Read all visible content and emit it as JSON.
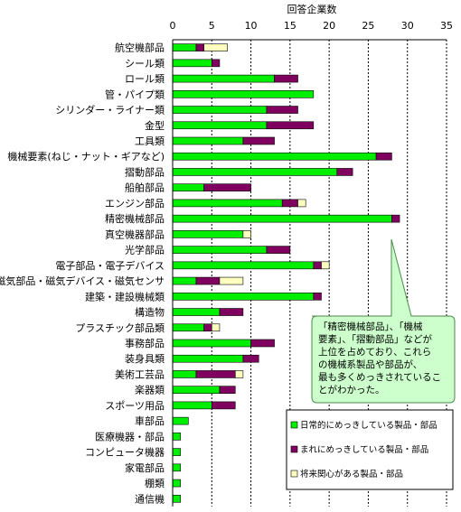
{
  "chart_data": {
    "type": "bar",
    "orientation": "horizontal",
    "stacked": true,
    "xlabel": "回答企業数",
    "xlim": [
      0,
      35
    ],
    "xticks": [
      0,
      5,
      10,
      15,
      20,
      25,
      30,
      35
    ],
    "grid": "vertical-dashed",
    "legend_position": "bottom-right",
    "categories": [
      "航空機部品",
      "シール類",
      "ロール類",
      "管・パイプ類",
      "シリンダー・ライナー類",
      "金型",
      "工具類",
      "機械要素(ねじ・ナット・ギアなど)",
      "摺動部品",
      "船舶部品",
      "エンジン部品",
      "精密機械部品",
      "真空機器部品",
      "光学部品",
      "電子部品・電子デバイス",
      "磁気部品・磁気デバイス・磁気センサ",
      "建築・建設機械類",
      "構造物",
      "プラスチック部品類",
      "事務部品",
      "装身具類",
      "美術工芸品",
      "楽器類",
      "スポーツ用品",
      "車部品",
      "医療機器・部品",
      "コンピュータ機器",
      "家電部品",
      "棚類",
      "通信機"
    ],
    "series": [
      {
        "name": "日常的にめっきしている製品・部品",
        "color": "#00ee00",
        "values": [
          3,
          5,
          13,
          18,
          12,
          12,
          9,
          26,
          21,
          4,
          14,
          28,
          9,
          12,
          18,
          3,
          18,
          6,
          4,
          10,
          9,
          3,
          6,
          5,
          2,
          1,
          1,
          1,
          1,
          1
        ]
      },
      {
        "name": "まれにめっきしている製品・部品",
        "color": "#800060",
        "values": [
          1,
          1,
          3,
          0,
          4,
          6,
          4,
          2,
          2,
          6,
          2,
          1,
          0,
          3,
          1,
          3,
          1,
          3,
          1,
          3,
          2,
          5,
          2,
          3,
          0,
          0,
          0,
          0,
          0,
          0
        ]
      },
      {
        "name": "将来関心がある製品・部品",
        "color": "#ffffc0",
        "values": [
          3,
          0,
          0,
          0,
          0,
          0,
          0,
          0,
          0,
          0,
          1,
          0,
          1,
          0,
          1,
          3,
          0,
          0,
          1,
          0,
          0,
          1,
          0,
          0,
          0,
          0,
          0,
          0,
          0,
          0
        ]
      }
    ],
    "annotation": "「精密機械部品」、「機械要素」、「摺動部品」などが上位を占めており、これらの機械系製品や部品が、最も多くめっきされていることがわかった。",
    "annotation_lines": [
      "「精密機械部品」、「機械",
      "要素」、「摺動部品」などが",
      "上位を占めており、これら",
      "の機械系製品や部品が、",
      "最も多くめっきされているこ",
      "とがわかった。"
    ]
  }
}
